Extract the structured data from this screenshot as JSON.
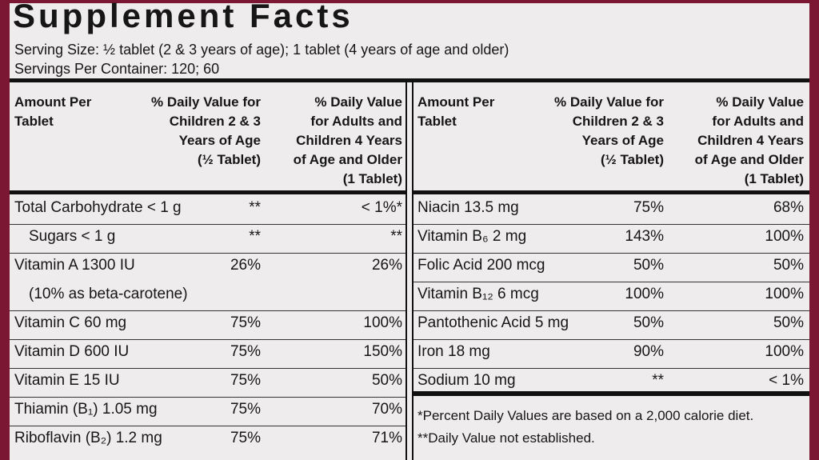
{
  "title": "Supplement Facts",
  "serving_size": "Serving Size: ½ tablet (2 & 3 years of age); 1 tablet (4 years of age and older)",
  "servings_per_container": "Servings Per Container: 120; 60",
  "left": {
    "header": {
      "amount": [
        "Amount Per",
        "Tablet"
      ],
      "child": [
        "% Daily Value for",
        "Children 2 & 3",
        "Years of Age",
        "(½ Tablet)"
      ],
      "adult": [
        "% Daily Value",
        "for Adults and",
        "Children 4 Years",
        "of Age and Older",
        "(1 Tablet)"
      ]
    },
    "rows": [
      {
        "name": "Total Carbohydrate < 1 g",
        "child": "**",
        "adult": "< 1%*"
      },
      {
        "name": "Sugars < 1 g",
        "child": "**",
        "adult": "**"
      },
      {
        "name": "Vitamin A 1300 IU",
        "child": "26%",
        "adult": "26%"
      },
      {
        "name": "(10% as beta-carotene)"
      },
      {
        "name": "Vitamin C 60 mg",
        "child": "75%",
        "adult": "100%"
      },
      {
        "name": "Vitamin D 600 IU",
        "child": "75%",
        "adult": "150%"
      },
      {
        "name": "Vitamin E 15 IU",
        "child": "75%",
        "adult": "50%"
      },
      {
        "name": "Thiamin (B₁) 1.05 mg",
        "child": "75%",
        "adult": "70%"
      },
      {
        "name": "Riboflavin (B₂) 1.2 mg",
        "child": "75%",
        "adult": "71%"
      }
    ]
  },
  "right": {
    "header": {
      "amount": [
        "Amount Per",
        "Tablet"
      ],
      "child": [
        "% Daily Value for",
        "Children 2 & 3",
        "Years of Age",
        "(½ Tablet)"
      ],
      "adult": [
        "% Daily Value",
        "for Adults and",
        "Children 4 Years",
        "of Age and Older",
        "(1 Tablet)"
      ]
    },
    "rows": [
      {
        "name": "Niacin 13.5 mg",
        "child": "75%",
        "adult": "68%"
      },
      {
        "name": "Vitamin B₆ 2 mg",
        "child": "143%",
        "adult": "100%"
      },
      {
        "name": "Folic Acid 200 mcg",
        "child": "50%",
        "adult": "50%"
      },
      {
        "name": "Vitamin B₁₂ 6 mcg",
        "child": "100%",
        "adult": "100%"
      },
      {
        "name": "Pantothenic Acid 5 mg",
        "child": "50%",
        "adult": "50%"
      },
      {
        "name": "Iron 18 mg",
        "child": "90%",
        "adult": "100%"
      },
      {
        "name": "Sodium 10 mg",
        "child": "**",
        "adult": "< 1%"
      }
    ]
  },
  "footnotes": [
    "*Percent Daily Values are based on a 2,000 calorie diet.",
    "**Daily Value not established."
  ]
}
